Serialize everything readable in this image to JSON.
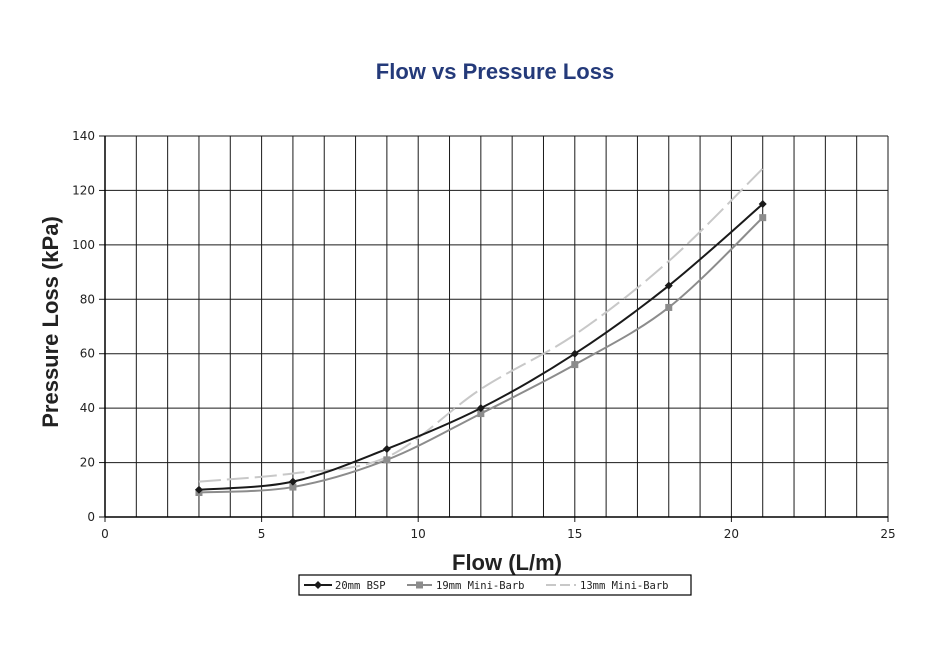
{
  "chart_data": {
    "type": "line",
    "title": "Flow vs Pressure Loss",
    "xlabel": "Flow (L/m)",
    "ylabel": "Pressure Loss (kPa)",
    "xlim": [
      0,
      25
    ],
    "ylim": [
      0,
      140
    ],
    "x_ticks": [
      0,
      5,
      10,
      15,
      20,
      25
    ],
    "y_ticks": [
      0,
      20,
      40,
      60,
      80,
      100,
      120,
      140
    ],
    "grid": true,
    "legend_position": "bottom",
    "x": [
      3,
      6,
      9,
      12,
      15,
      18,
      21
    ],
    "series": [
      {
        "name": "20mm BSP",
        "values": [
          10,
          13,
          25,
          40,
          60,
          85,
          115
        ],
        "color": "#1a1a1a",
        "marker": "diamond",
        "dashed": false
      },
      {
        "name": "19mm Mini-Barb",
        "values": [
          9,
          11,
          21,
          38,
          56,
          77,
          110
        ],
        "color": "#8c8c8c",
        "marker": "square",
        "dashed": false
      },
      {
        "name": "13mm Mini-Barb",
        "values": [
          13,
          16,
          22,
          47,
          67,
          94,
          128
        ],
        "color": "#c8c8c8",
        "marker": "none",
        "dashed": true
      }
    ]
  }
}
